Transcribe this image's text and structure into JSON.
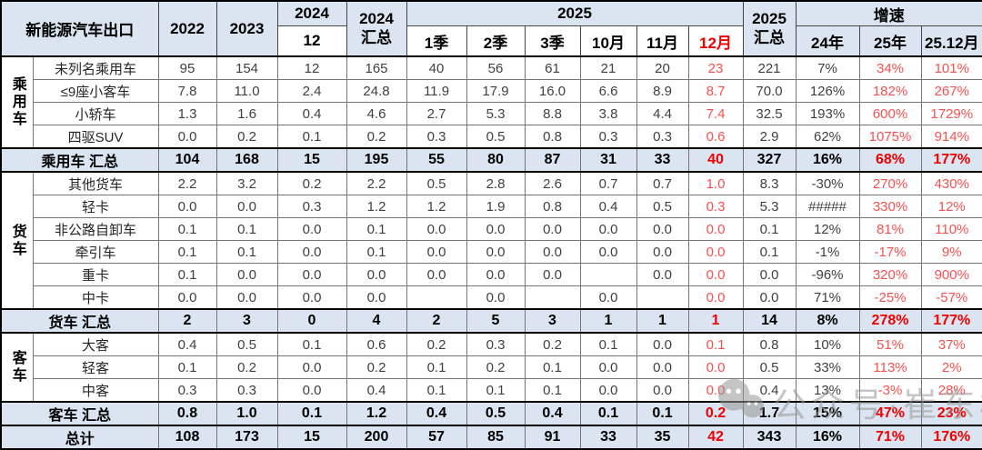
{
  "title": "新能源汽车出口",
  "header": {
    "corner": "新能源汽车出口",
    "y2022": "2022",
    "y2023": "2023",
    "y2024": "2024",
    "y2024_sub": "12",
    "y2024_total": {
      "line1": "2024",
      "line2": "汇总"
    },
    "y2025": "2025",
    "periods": [
      "1季",
      "2季",
      "3季",
      "10月",
      "11月",
      "12月"
    ],
    "y2025_total": {
      "line1": "2025",
      "line2": "汇总"
    },
    "growth_title": "增速",
    "growth_cols": [
      "24年",
      "25年",
      "25.12月"
    ]
  },
  "chart_data": {
    "type": "table",
    "title": "新能源汽车出口",
    "columns": [
      "2022",
      "2023",
      "2024-12",
      "2024汇总",
      "2025-1季",
      "2025-2季",
      "2025-3季",
      "2025-10月",
      "2025-11月",
      "2025-12月",
      "2025汇总",
      "增速24年",
      "增速25年",
      "增速25.12月"
    ],
    "red_column_indexes": [
      9,
      12,
      13
    ],
    "groups": [
      {
        "name": "乘用车",
        "rows": [
          {
            "label": "未列名乘用车",
            "cells": [
              "95",
              "154",
              "12",
              "165",
              "40",
              "56",
              "61",
              "21",
              "20",
              "23",
              "221",
              "7%",
              "34%",
              "101%"
            ]
          },
          {
            "label": "≤9座小客车",
            "cells": [
              "7.8",
              "11.0",
              "2.4",
              "24.8",
              "11.9",
              "17.9",
              "16.0",
              "6.6",
              "8.9",
              "8.7",
              "70.0",
              "126%",
              "182%",
              "267%"
            ]
          },
          {
            "label": "小轿车",
            "cells": [
              "1.3",
              "1.6",
              "0.4",
              "4.6",
              "2.7",
              "5.3",
              "8.8",
              "3.8",
              "4.4",
              "7.4",
              "32.5",
              "193%",
              "600%",
              "1729%"
            ]
          },
          {
            "label": "四驱SUV",
            "cells": [
              "0.0",
              "0.2",
              "0.1",
              "0.2",
              "0.3",
              "0.5",
              "0.8",
              "0.3",
              "0.3",
              "0.6",
              "2.9",
              "62%",
              "1075%",
              "914%"
            ]
          }
        ],
        "summary": {
          "label": "乘用车 汇总",
          "cells": [
            "104",
            "168",
            "15",
            "195",
            "55",
            "80",
            "87",
            "31",
            "33",
            "40",
            "327",
            "16%",
            "68%",
            "177%"
          ]
        }
      },
      {
        "name": "货车",
        "rows": [
          {
            "label": "其他货车",
            "cells": [
              "2.2",
              "3.2",
              "0.2",
              "2.2",
              "0.5",
              "2.8",
              "2.6",
              "0.7",
              "0.7",
              "1.0",
              "8.3",
              "-30%",
              "270%",
              "430%"
            ]
          },
          {
            "label": "轻卡",
            "cells": [
              "0.0",
              "0.0",
              "0.3",
              "1.2",
              "1.2",
              "1.9",
              "0.8",
              "0.4",
              "0.5",
              "0.3",
              "5.3",
              "#####",
              "330%",
              "12%"
            ]
          },
          {
            "label": "非公路自卸车",
            "cells": [
              "0.1",
              "0.1",
              "0.0",
              "0.1",
              "0.0",
              "0.0",
              "0.0",
              "0.0",
              "0.0",
              "0.0",
              "0.1",
              "12%",
              "81%",
              "110%"
            ]
          },
          {
            "label": "牵引车",
            "cells": [
              "0.1",
              "0.1",
              "0.0",
              "0.1",
              "0.0",
              "0.0",
              "0.0",
              "0.0",
              "0.0",
              "0.0",
              "0.1",
              "-1%",
              "-17%",
              "9%"
            ]
          },
          {
            "label": "重卡",
            "cells": [
              "0.1",
              "0.0",
              "0.0",
              "0.0",
              "0.0",
              "0.0",
              "0.0",
              "",
              "0.0",
              "0.0",
              "0.0",
              "-96%",
              "320%",
              "900%"
            ]
          },
          {
            "label": "中卡",
            "cells": [
              "0.0",
              "0.0",
              "0.0",
              "0.0",
              "",
              "0.0",
              "",
              "0.0",
              "",
              "0.0",
              "0.0",
              "71%",
              "-25%",
              "-57%"
            ]
          }
        ],
        "summary": {
          "label": "货车 汇总",
          "cells": [
            "2",
            "3",
            "0",
            "4",
            "2",
            "5",
            "3",
            "1",
            "1",
            "1",
            "14",
            "8%",
            "278%",
            "177%"
          ]
        }
      },
      {
        "name": "客车",
        "rows": [
          {
            "label": "大客",
            "cells": [
              "0.4",
              "0.5",
              "0.1",
              "0.6",
              "0.2",
              "0.3",
              "0.2",
              "0.1",
              "0.0",
              "0.1",
              "0.8",
              "10%",
              "51%",
              "37%"
            ]
          },
          {
            "label": "轻客",
            "cells": [
              "0.1",
              "0.2",
              "0.0",
              "0.2",
              "0.1",
              "0.2",
              "0.1",
              "0.0",
              "0.0",
              "0.0",
              "0.5",
              "33%",
              "113%",
              "2%"
            ]
          },
          {
            "label": "中客",
            "cells": [
              "0.3",
              "0.3",
              "0.0",
              "0.4",
              "0.1",
              "0.1",
              "0.1",
              "0.0",
              "0.0",
              "0.0",
              "0.4",
              "13%",
              "-3%",
              "28%"
            ]
          }
        ],
        "summary": {
          "label": "客车 汇总",
          "cells": [
            "0.8",
            "1.0",
            "0.1",
            "1.2",
            "0.4",
            "0.5",
            "0.4",
            "0.1",
            "0.1",
            "0.2",
            "1.7",
            "15%",
            "47%",
            "23%"
          ]
        }
      }
    ],
    "grand_total": {
      "label": "总计",
      "cells": [
        "108",
        "173",
        "15",
        "200",
        "57",
        "85",
        "91",
        "33",
        "35",
        "42",
        "343",
        "16%",
        "71%",
        "176%"
      ]
    }
  },
  "watermark": {
    "icon": "wechat-icon",
    "text": "公众号·崔东树"
  },
  "colors": {
    "header_bg": "#dbe5f1",
    "summary_bg": "#dbe5f1",
    "red": "#f85050",
    "red_bold": "#f00000",
    "text": "#404040"
  }
}
